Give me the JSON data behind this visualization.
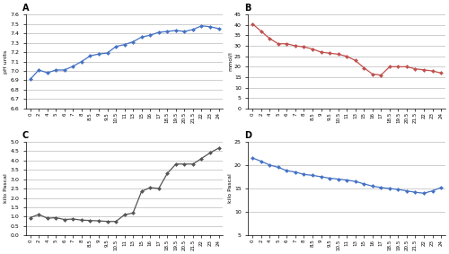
{
  "panel_A": {
    "label": "A",
    "ylabel": "pH units",
    "ylim": [
      6.6,
      7.6
    ],
    "yticks": [
      6.6,
      6.7,
      6.8,
      6.9,
      7.0,
      7.1,
      7.2,
      7.3,
      7.4,
      7.5,
      7.6
    ],
    "color": "#4472C4",
    "y": [
      6.91,
      7.01,
      6.98,
      7.01,
      7.01,
      7.05,
      7.1,
      7.16,
      7.18,
      7.19,
      7.26,
      7.28,
      7.31,
      7.36,
      7.38,
      7.41,
      7.42,
      7.43,
      7.42,
      7.44,
      7.48,
      7.47,
      7.45
    ]
  },
  "panel_B": {
    "label": "B",
    "ylabel": "mmol/l",
    "ylim": [
      0,
      45
    ],
    "yticks": [
      0,
      5,
      10,
      15,
      20,
      25,
      30,
      35,
      40,
      45
    ],
    "color": "#C0504D",
    "y": [
      40.5,
      37.0,
      33.5,
      31.0,
      31.0,
      30.0,
      29.5,
      28.5,
      27.0,
      26.5,
      26.0,
      25.0,
      23.0,
      19.5,
      16.5,
      16.0,
      20.0,
      20.0,
      20.0,
      19.0,
      18.5,
      18.0,
      17.0
    ]
  },
  "panel_C": {
    "label": "C",
    "ylabel": "kilo Pascal",
    "ylim": [
      0,
      5
    ],
    "yticks": [
      0,
      0.5,
      1.0,
      1.5,
      2.0,
      2.5,
      3.0,
      3.5,
      4.0,
      4.5,
      5.0
    ],
    "color": "#555555",
    "y": [
      0.95,
      1.12,
      0.92,
      0.95,
      0.85,
      0.88,
      0.82,
      0.8,
      0.78,
      0.75,
      0.75,
      1.1,
      1.2,
      2.35,
      2.55,
      2.5,
      3.3,
      3.8,
      3.8,
      3.8,
      4.1,
      4.4,
      4.65
    ]
  },
  "panel_D": {
    "label": "D",
    "ylabel": "kilo Pascal",
    "ylim": [
      5,
      25
    ],
    "yticks": [
      5,
      10,
      15,
      20,
      25
    ],
    "color": "#4472C4",
    "y": [
      21.5,
      20.8,
      20.0,
      19.5,
      18.8,
      18.5,
      18.0,
      17.8,
      17.5,
      17.2,
      17.0,
      16.8,
      16.5,
      16.0,
      15.5,
      15.2,
      15.0,
      14.8,
      14.5,
      14.2,
      14.0,
      14.5,
      15.2
    ]
  },
  "xtick_labels": [
    "0",
    "2",
    "4",
    "5",
    "6",
    "7",
    "8",
    "8.5",
    "9",
    "9.5",
    "10.5",
    "11",
    "13",
    "15",
    "16",
    "17",
    "18.5",
    "19.5",
    "20.5",
    "21.5",
    "22",
    "23",
    "24"
  ],
  "bg_color": "#FFFFFF",
  "grid_color": "#BBBBBB",
  "marker": "D",
  "marker_size": 2.0,
  "linewidth": 0.9
}
